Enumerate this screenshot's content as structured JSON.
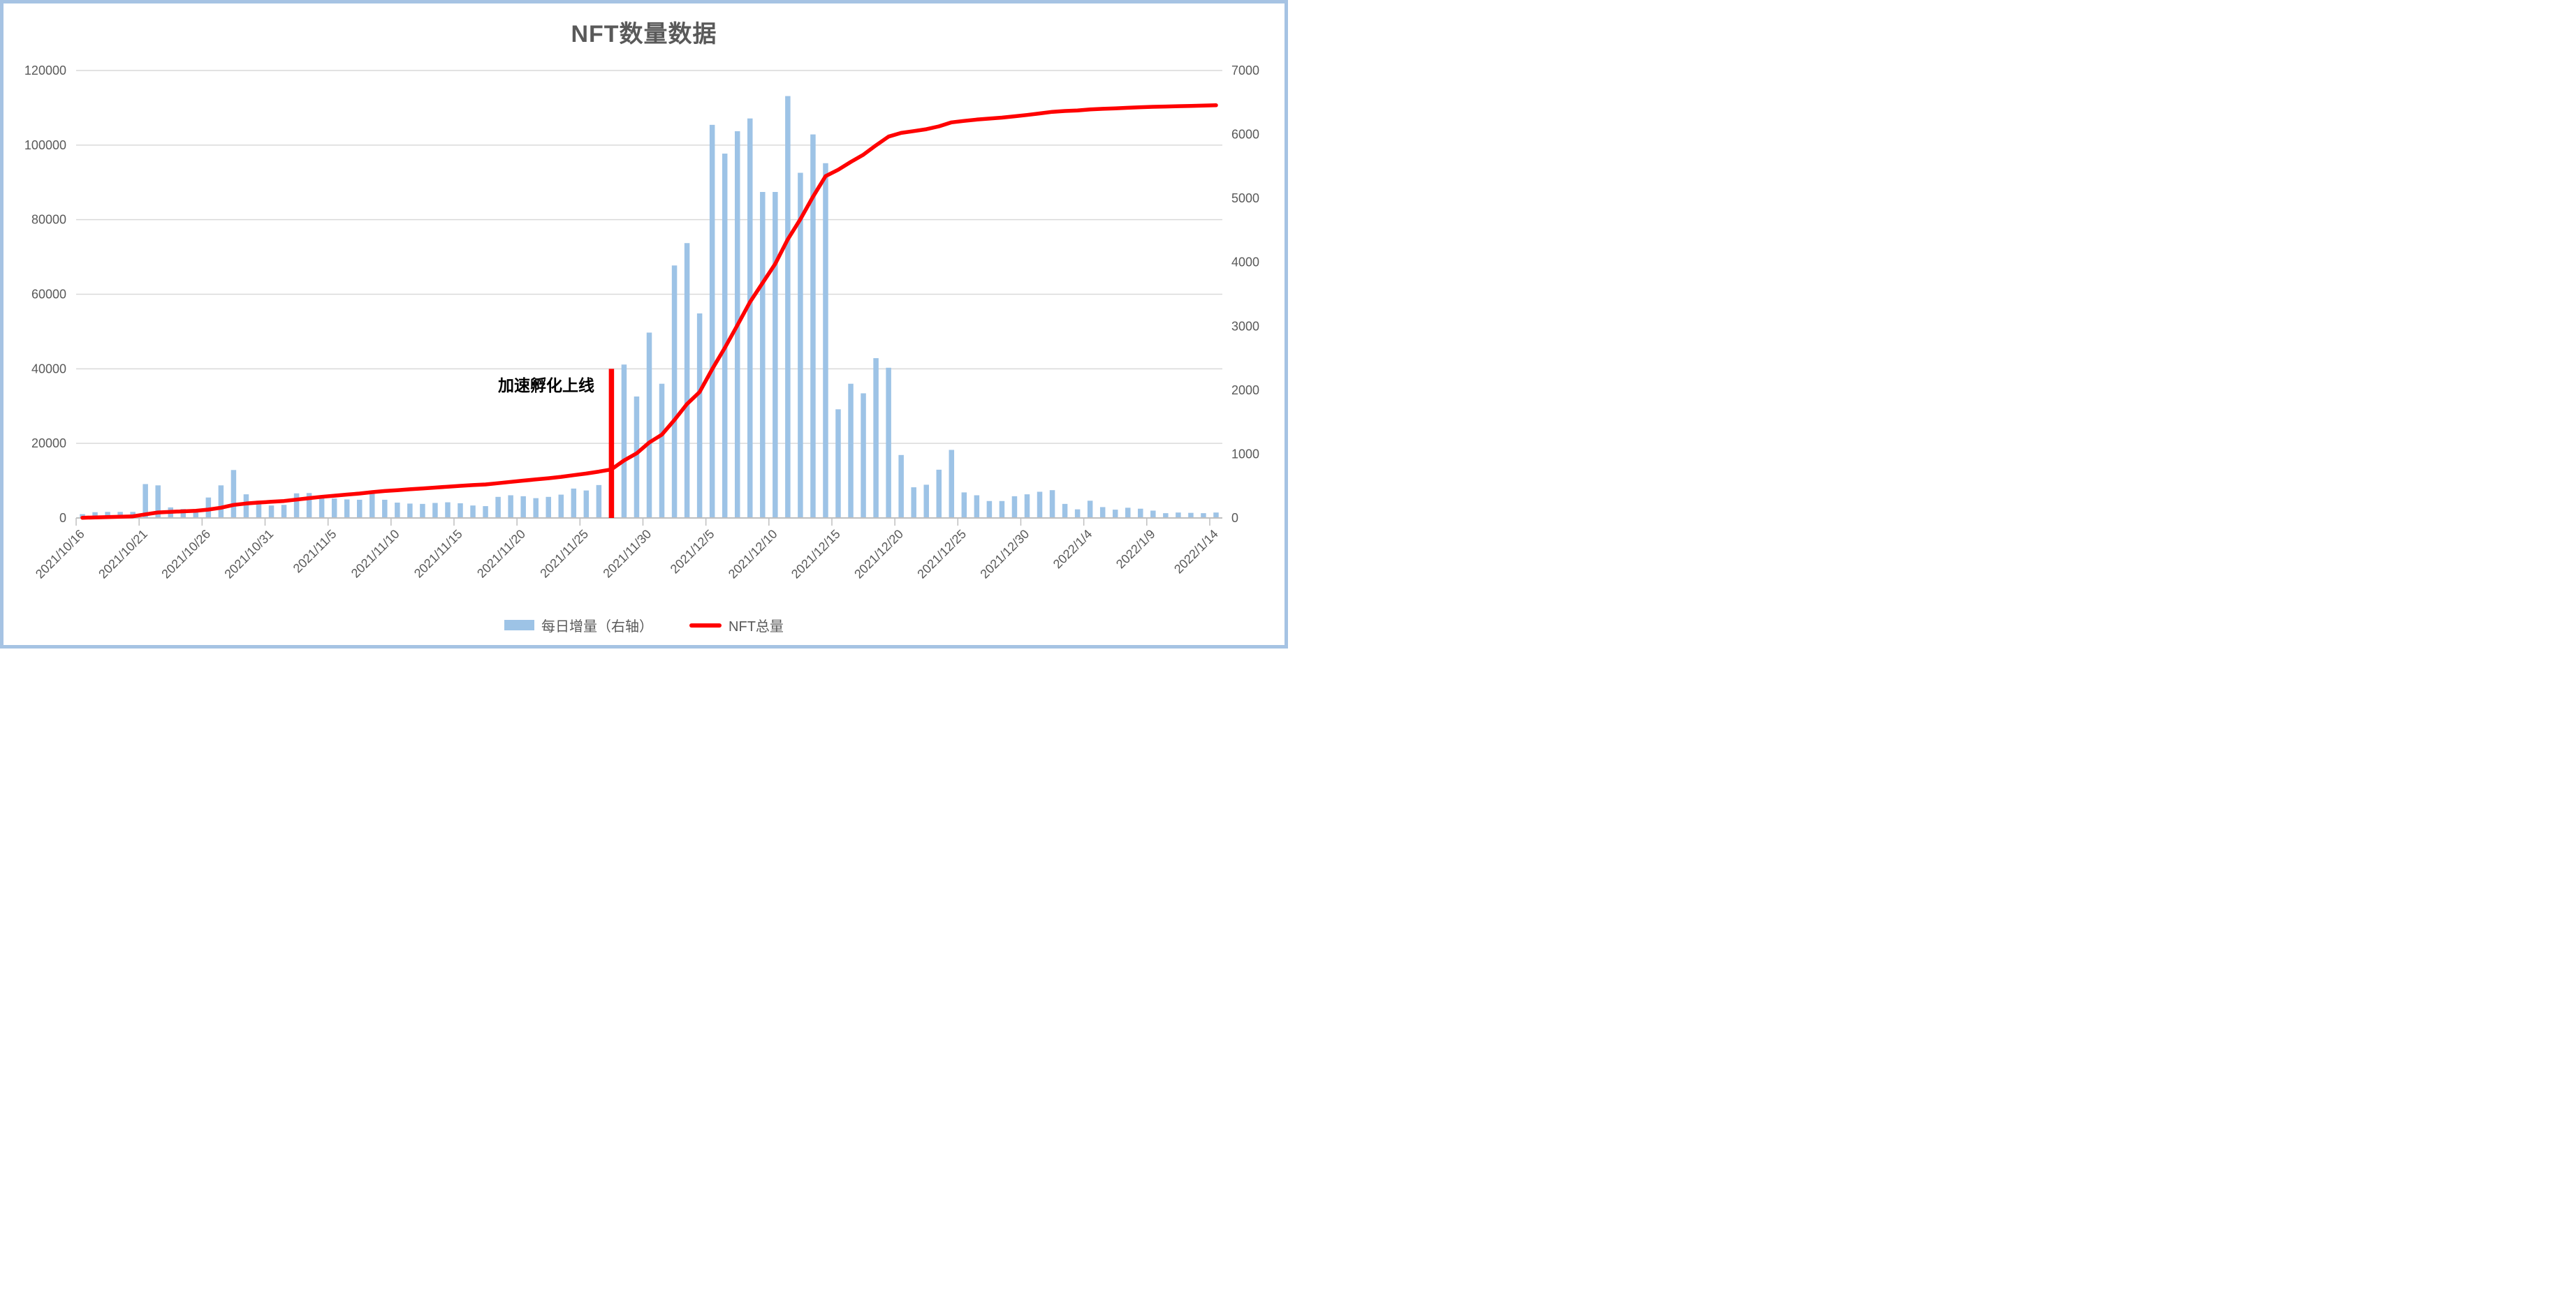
{
  "title": "NFT数量数据",
  "annotation": {
    "label": "加速孵化上线"
  },
  "legend": [
    {
      "label": "每日增量（右轴）",
      "swatch": "bar",
      "color": "#9DC3E6"
    },
    {
      "label": "NFT总量",
      "swatch": "line",
      "color": "#FF0000"
    }
  ],
  "colors": {
    "bar": "#9DC3E6",
    "line": "#FF0000",
    "event_marker": "#FF0000",
    "grid": "#D9D9D9",
    "axis": "#BFBFBF",
    "label_text": "#595959",
    "title_text": "#595959",
    "annotation_text": "#000000",
    "frame_border": "#A6C3E3"
  },
  "chart_data": {
    "type": "bar+line combo",
    "title": "NFT数量数据",
    "grid": "horizontal",
    "legend_position": "bottom",
    "x": [
      "2021/10/16",
      "2021/10/17",
      "2021/10/18",
      "2021/10/19",
      "2021/10/20",
      "2021/10/21",
      "2021/10/22",
      "2021/10/23",
      "2021/10/24",
      "2021/10/25",
      "2021/10/26",
      "2021/10/27",
      "2021/10/28",
      "2021/10/29",
      "2021/10/30",
      "2021/10/31",
      "2021/11/1",
      "2021/11/2",
      "2021/11/3",
      "2021/11/4",
      "2021/11/5",
      "2021/11/6",
      "2021/11/7",
      "2021/11/8",
      "2021/11/9",
      "2021/11/10",
      "2021/11/11",
      "2021/11/12",
      "2021/11/13",
      "2021/11/14",
      "2021/11/15",
      "2021/11/16",
      "2021/11/17",
      "2021/11/18",
      "2021/11/19",
      "2021/11/20",
      "2021/11/21",
      "2021/11/22",
      "2021/11/23",
      "2021/11/24",
      "2021/11/25",
      "2021/11/26",
      "2021/11/27",
      "2021/11/28",
      "2021/11/29",
      "2021/11/30",
      "2021/12/1",
      "2021/12/2",
      "2021/12/3",
      "2021/12/4",
      "2021/12/5",
      "2021/12/6",
      "2021/12/7",
      "2021/12/8",
      "2021/12/9",
      "2021/12/10",
      "2021/12/11",
      "2021/12/12",
      "2021/12/13",
      "2021/12/14",
      "2021/12/15",
      "2021/12/16",
      "2021/12/17",
      "2021/12/18",
      "2021/12/19",
      "2021/12/20",
      "2021/12/21",
      "2021/12/22",
      "2021/12/23",
      "2021/12/24",
      "2021/12/25",
      "2021/12/26",
      "2021/12/27",
      "2021/12/28",
      "2021/12/29",
      "2021/12/30",
      "2021/12/31",
      "2022/1/1",
      "2022/1/2",
      "2022/1/3",
      "2022/1/4",
      "2022/1/5",
      "2022/1/6",
      "2022/1/7",
      "2022/1/8",
      "2022/1/9",
      "2022/1/10",
      "2022/1/11",
      "2022/1/12",
      "2022/1/13",
      "2022/1/14"
    ],
    "series": [
      {
        "name": "每日增量（右轴）",
        "type": "bar",
        "axis": "right",
        "color": "#9DC3E6",
        "values": [
          60,
          90,
          95,
          95,
          95,
          530,
          510,
          165,
          140,
          140,
          320,
          510,
          750,
          370,
          270,
          195,
          205,
          385,
          390,
          355,
          305,
          290,
          285,
          385,
          285,
          240,
          225,
          220,
          235,
          245,
          230,
          195,
          185,
          330,
          355,
          340,
          310,
          330,
          365,
          460,
          430,
          515,
          600,
          2400,
          1900,
          2900,
          2100,
          3950,
          4300,
          3200,
          6150,
          5700,
          6050,
          6250,
          5100,
          5100,
          6600,
          5400,
          6000,
          5550,
          1700,
          2100,
          1950,
          2500,
          2350,
          985,
          480,
          520,
          755,
          1065,
          400,
          355,
          265,
          265,
          340,
          370,
          410,
          435,
          220,
          135,
          270,
          170,
          130,
          160,
          145,
          115,
          75,
          85,
          80,
          75,
          85
        ]
      },
      {
        "name": "NFT总量",
        "type": "line",
        "axis": "left",
        "color": "#FF0000",
        "values": [
          60,
          150,
          245,
          340,
          435,
          965,
          1475,
          1640,
          1780,
          1920,
          2240,
          2750,
          3500,
          3870,
          4140,
          4335,
          4540,
          4925,
          5315,
          5670,
          5975,
          6265,
          6550,
          6935,
          7220,
          7460,
          7685,
          7905,
          8140,
          8385,
          8615,
          8810,
          8995,
          9325,
          9680,
          10020,
          10330,
          10660,
          11025,
          11485,
          11915,
          12430,
          13030,
          15430,
          17330,
          20230,
          22330,
          26280,
          30580,
          33780,
          39930,
          45630,
          51680,
          57930,
          63030,
          68130,
          74730,
          80130,
          86130,
          91680,
          93380,
          95480,
          97430,
          99930,
          102280,
          103265,
          103745,
          104265,
          105020,
          106085,
          106485,
          106840,
          107105,
          107370,
          107710,
          108080,
          108490,
          108925,
          109145,
          109280,
          109550,
          109720,
          109850,
          110010,
          110155,
          110270,
          110345,
          110430,
          110510,
          110585,
          110670
        ]
      }
    ],
    "left_axis": {
      "min": 0,
      "max": 120000,
      "step": 20000,
      "ticks": [
        0,
        20000,
        40000,
        60000,
        80000,
        100000,
        120000
      ]
    },
    "right_axis": {
      "min": 0,
      "max": 7000,
      "step": 1000,
      "ticks": [
        0,
        1000,
        2000,
        3000,
        4000,
        5000,
        6000,
        7000
      ]
    },
    "x_tick_every": 5,
    "x_tick_labels": [
      "2021/10/16",
      "2021/10/21",
      "2021/10/26",
      "2021/10/31",
      "2021/11/5",
      "2021/11/10",
      "2021/11/15",
      "2021/11/20",
      "2021/11/25",
      "2021/11/30",
      "2021/12/5",
      "2021/12/10",
      "2021/12/15",
      "2021/12/20",
      "2021/12/25",
      "2021/12/30",
      "2022/1/4",
      "2022/1/9",
      "2022/1/14"
    ],
    "annotation": {
      "x": "2021/11/27",
      "label": "加速孵化上线",
      "y_top_on_left_axis": 40000
    }
  }
}
